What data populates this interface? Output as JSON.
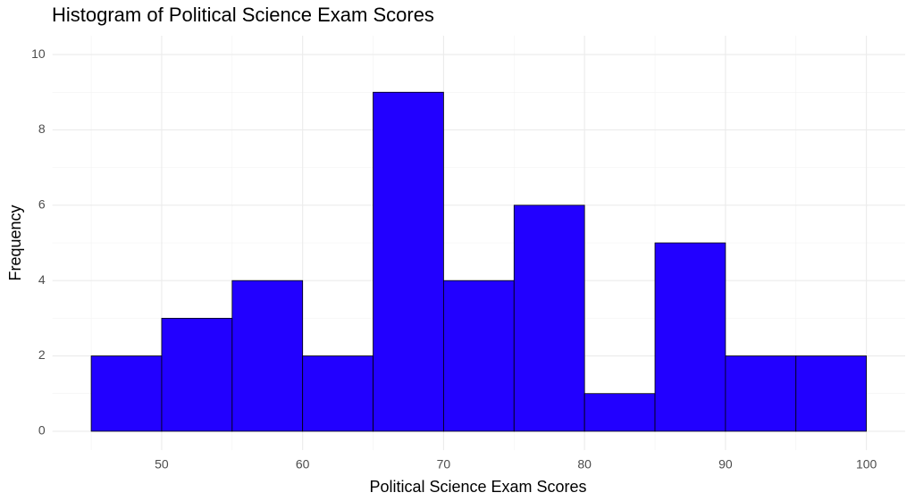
{
  "chart_data": {
    "type": "histogram",
    "title": "Histogram of Political Science Exam Scores",
    "x_label": "Political Science Exam Scores",
    "y_label": "Frequency",
    "bins": [
      45,
      50,
      55,
      60,
      65,
      70,
      75,
      80,
      85,
      90,
      95,
      100
    ],
    "values": [
      2,
      3,
      4,
      2,
      9,
      4,
      6,
      1,
      5,
      2,
      2
    ],
    "color": "#2200ff",
    "edge_color": "#000000",
    "xlim": [
      42.25,
      102.75
    ],
    "ylim": [
      -0.5,
      10.5
    ],
    "xticks": [
      50,
      60,
      70,
      80,
      90,
      100
    ],
    "yticks": [
      0,
      2,
      4,
      6,
      8,
      10
    ],
    "grid": true
  }
}
